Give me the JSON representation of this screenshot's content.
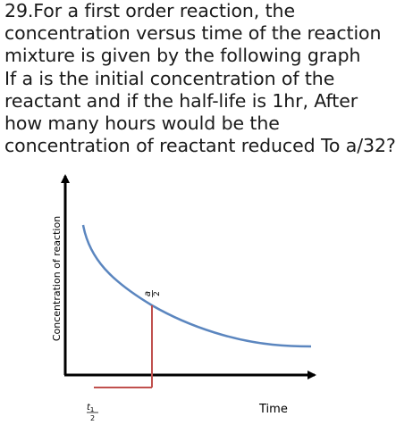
{
  "question": {
    "lines": [
      "29.For a first order reaction, the",
      "concentration versus time of the reaction",
      "mixture is given by the following graph",
      "If a is the initial concentration of the",
      "reactant and if the half-life is 1hr, After",
      "how many hours would be the",
      "concentration of reactant reduced To a/32?"
    ]
  },
  "graph": {
    "y_axis_label": "Concentration of reaction",
    "x_axis_label": "Time",
    "half_conc_label": {
      "numerator": "a",
      "denominator": "2"
    },
    "half_life_label": {
      "numerator": "t",
      "subscript": "1",
      "denominator": "2"
    },
    "colors": {
      "axes": "#000000",
      "curve": "#5b86bf",
      "marker": "#c0504d"
    }
  }
}
